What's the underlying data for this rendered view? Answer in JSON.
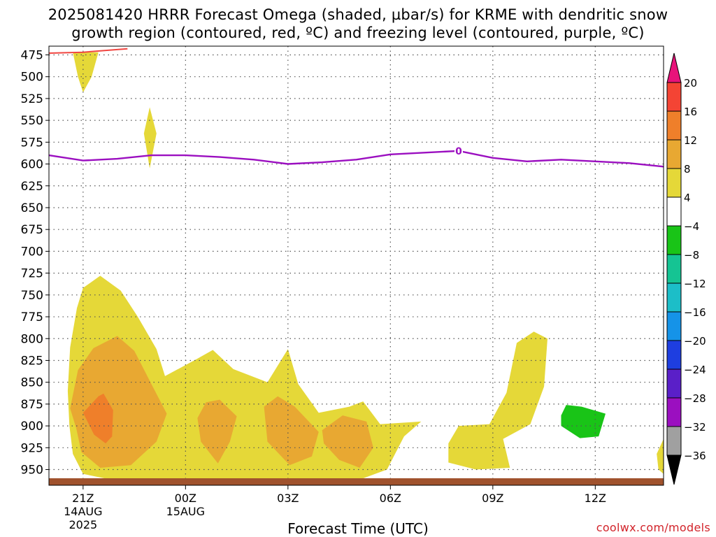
{
  "title_line1": "2025081420 HRRR Forecast Omega (shaded, µbar/s) for KRME with dendritic snow",
  "title_line2": "growth region (contoured, red, ºC) and freezing level (contoured, purple, ºC)",
  "credit": "coolwx.com/models",
  "chart_data": {
    "type": "heatmap",
    "title": "2025081420 HRRR Forecast Omega (shaded, µbar/s) for KRME with dendritic snow growth region (contoured, red, ºC) and freezing level (contoured, purple, ºC)",
    "xlabel": "Forecast Time (UTC)",
    "ylabel": "",
    "x_ticks": [
      {
        "hour": 1,
        "label": "21Z",
        "sub1": "14AUG",
        "sub2": "2025"
      },
      {
        "hour": 4,
        "label": "00Z",
        "sub1": "15AUG",
        "sub2": ""
      },
      {
        "hour": 7,
        "label": "03Z",
        "sub1": "",
        "sub2": ""
      },
      {
        "hour": 10,
        "label": "06Z",
        "sub1": "",
        "sub2": ""
      },
      {
        "hour": 13,
        "label": "09Z",
        "sub1": "",
        "sub2": ""
      },
      {
        "hour": 16,
        "label": "12Z",
        "sub1": "",
        "sub2": ""
      }
    ],
    "xlim": [
      0,
      18
    ],
    "y_ticks": [
      475,
      500,
      525,
      550,
      575,
      600,
      625,
      650,
      675,
      700,
      725,
      750,
      775,
      800,
      825,
      850,
      875,
      900,
      925,
      950
    ],
    "ylim": [
      968,
      465
    ],
    "grid": true,
    "colorbar": {
      "labels": [
        "20",
        "16",
        "12",
        "8",
        "4",
        "−4",
        "−8",
        "−12",
        "−16",
        "−20",
        "−24",
        "−28",
        "−32",
        "−36"
      ],
      "colors": [
        "#e8137a",
        "#f44434",
        "#ef7f2a",
        "#e8a832",
        "#e5d838",
        "#ffffff",
        "#19c417",
        "#15c493",
        "#1cbec8",
        "#1593e8",
        "#1e3ee0",
        "#5a1fc8",
        "#9b0fc0",
        "#a0a0a0",
        "#000000"
      ]
    },
    "shaded_regions": [
      {
        "level": "4-8",
        "color": "#e5d838",
        "points": [
          [
            0.7,
            932
          ],
          [
            0.6,
            900
          ],
          [
            0.55,
            860
          ],
          [
            0.62,
            810
          ],
          [
            0.82,
            765
          ],
          [
            1.0,
            742
          ],
          [
            1.5,
            728
          ],
          [
            2.1,
            745
          ],
          [
            2.6,
            775
          ],
          [
            3.15,
            812
          ],
          [
            3.4,
            843
          ],
          [
            4.3,
            824
          ],
          [
            4.8,
            813
          ],
          [
            5.4,
            835
          ],
          [
            6.4,
            850
          ],
          [
            7.0,
            812
          ],
          [
            7.3,
            852
          ],
          [
            7.9,
            885
          ],
          [
            8.8,
            878
          ],
          [
            9.2,
            872
          ],
          [
            9.7,
            898
          ],
          [
            10.9,
            895
          ],
          [
            10.4,
            912
          ],
          [
            9.9,
            950
          ],
          [
            9.0,
            963
          ],
          [
            8.0,
            968
          ],
          [
            6.0,
            968
          ],
          [
            4.0,
            968
          ],
          [
            2.0,
            963
          ],
          [
            1.0,
            955
          ],
          [
            0.7,
            932
          ]
        ]
      },
      {
        "level": "4-8",
        "color": "#e5d838",
        "points": [
          [
            0.7,
            472
          ],
          [
            0.85,
            500
          ],
          [
            1.0,
            518
          ],
          [
            1.25,
            500
          ],
          [
            1.45,
            472
          ]
        ]
      },
      {
        "level": "4-8",
        "color": "#e5d838",
        "points": [
          [
            2.95,
            535
          ],
          [
            3.15,
            565
          ],
          [
            2.95,
            605
          ],
          [
            2.78,
            565
          ]
        ]
      },
      {
        "level": "4-8",
        "color": "#e5d838",
        "points": [
          [
            11.7,
            920
          ],
          [
            12.0,
            900
          ],
          [
            12.9,
            898
          ],
          [
            13.4,
            862
          ],
          [
            13.7,
            805
          ],
          [
            14.2,
            792
          ],
          [
            14.6,
            800
          ],
          [
            14.5,
            855
          ],
          [
            14.1,
            898
          ],
          [
            13.3,
            915
          ],
          [
            13.5,
            948
          ],
          [
            12.5,
            950
          ],
          [
            11.7,
            942
          ]
        ]
      },
      {
        "level": "4-8",
        "color": "#e5d838",
        "points": [
          [
            17.8,
            932
          ],
          [
            18.0,
            915
          ],
          [
            18.0,
            955
          ],
          [
            17.85,
            950
          ]
        ]
      },
      {
        "level": "8-12",
        "color": "#e8a832",
        "points": [
          [
            0.8,
            903
          ],
          [
            0.62,
            880
          ],
          [
            0.85,
            836
          ],
          [
            1.3,
            811
          ],
          [
            2.0,
            797
          ],
          [
            2.5,
            814
          ],
          [
            3.0,
            852
          ],
          [
            3.45,
            886
          ],
          [
            3.15,
            918
          ],
          [
            2.4,
            945
          ],
          [
            1.5,
            948
          ],
          [
            0.95,
            930
          ],
          [
            0.8,
            903
          ]
        ]
      },
      {
        "level": "8-12",
        "color": "#e8a832",
        "points": [
          [
            4.6,
            873
          ],
          [
            5.0,
            870
          ],
          [
            5.5,
            889
          ],
          [
            5.3,
            918
          ],
          [
            4.95,
            943
          ],
          [
            4.45,
            918
          ],
          [
            4.35,
            891
          ]
        ]
      },
      {
        "level": "8-12",
        "color": "#e8a832",
        "points": [
          [
            6.3,
            878
          ],
          [
            6.7,
            866
          ],
          [
            7.2,
            878
          ],
          [
            7.9,
            907
          ],
          [
            7.7,
            935
          ],
          [
            7.05,
            945
          ],
          [
            6.4,
            918
          ]
        ]
      },
      {
        "level": "8-12",
        "color": "#e8a832",
        "points": [
          [
            8.0,
            905
          ],
          [
            8.6,
            888
          ],
          [
            9.3,
            895
          ],
          [
            9.5,
            925
          ],
          [
            9.1,
            948
          ],
          [
            8.5,
            939
          ],
          [
            8.05,
            920
          ]
        ]
      },
      {
        "level": "12-16",
        "color": "#ef7f2a",
        "points": [
          [
            1.0,
            885
          ],
          [
            1.45,
            866
          ],
          [
            1.6,
            863
          ],
          [
            1.88,
            882
          ],
          [
            1.85,
            912
          ],
          [
            1.66,
            920
          ],
          [
            1.32,
            910
          ]
        ]
      },
      {
        "level": "-8--4",
        "color": "#19c417",
        "points": [
          [
            15.0,
            888
          ],
          [
            15.15,
            876
          ],
          [
            15.6,
            878
          ],
          [
            16.3,
            886
          ],
          [
            16.1,
            912
          ],
          [
            15.55,
            914
          ],
          [
            15.0,
            900
          ]
        ]
      }
    ],
    "freezing_level": {
      "label": "0",
      "color": "#9b0fc0",
      "points": [
        [
          0,
          590
        ],
        [
          1,
          596
        ],
        [
          2,
          594
        ],
        [
          3,
          590
        ],
        [
          4,
          590
        ],
        [
          5,
          592
        ],
        [
          6,
          595
        ],
        [
          7,
          600
        ],
        [
          8,
          598
        ],
        [
          9,
          595
        ],
        [
          10,
          589
        ],
        [
          11,
          587
        ],
        [
          12,
          585
        ],
        [
          13,
          593
        ],
        [
          14,
          597
        ],
        [
          15,
          595
        ],
        [
          16,
          597
        ],
        [
          17,
          599
        ],
        [
          18,
          603
        ]
      ],
      "label_at": [
        12,
        585
      ]
    },
    "dgz_contour": {
      "color": "#f04540",
      "points": [
        [
          0,
          473
        ],
        [
          1,
          472
        ],
        [
          2.3,
          468
        ]
      ]
    },
    "terrain_color": "#a0522d"
  }
}
